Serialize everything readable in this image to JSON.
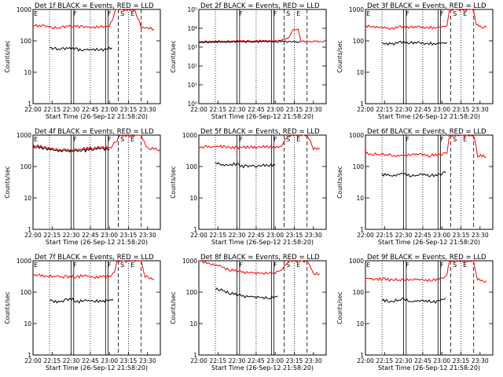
{
  "chart_data": {
    "type": "line",
    "x_tick_labels": [
      "22:00",
      "22:15",
      "22:30",
      "22:45",
      "23:00",
      "23:15",
      "23:30"
    ],
    "x_range": [
      "22:00",
      "23:40"
    ],
    "panels": [
      {
        "title": "Det 1f BLACK = Events, RED = LLD",
        "xlabel": "Start Time (26-Sep-12 21:58:20)",
        "ylabel": "Counts/sec",
        "scale": "log",
        "ylim": [
          1,
          1000
        ],
        "y_tick_labels": [
          "1",
          "10",
          "100",
          "1000"
        ],
        "markers": [
          "E",
          "F",
          "F",
          "S",
          "E"
        ],
        "series": [
          {
            "color": "#ff0000",
            "x": [
              "22:00",
              "22:10",
              "22:20",
              "22:30",
              "22:40",
              "22:50",
              "23:00",
              "23:03",
              "23:05",
              "23:08",
              "23:15",
              "23:20",
              "23:25",
              "23:35"
            ],
            "values": [
              320,
              280,
              260,
              300,
              280,
              270,
              290,
              500,
              1000,
              1000,
              1000,
              1000,
              260,
              240
            ]
          },
          {
            "color": "#000000",
            "x": [
              "22:13",
              "22:20",
              "22:30",
              "22:38",
              "22:45",
              "22:55",
              "23:02"
            ],
            "values": [
              60,
              55,
              58,
              52,
              55,
              50,
              60
            ]
          }
        ]
      },
      {
        "title": "Det 2f BLACK = Events, RED = LLD",
        "xlabel": "Start Time (26-Sep-12 21:58:20)",
        "ylabel": "Counts/sec",
        "scale": "log",
        "ylim": [
          1,
          100000
        ],
        "y_tick_labels": [
          "10⁰",
          "10¹",
          "10²",
          "10³",
          "10⁴",
          "10⁵"
        ],
        "markers": [
          "F",
          "F",
          "S",
          "E"
        ],
        "series": [
          {
            "color": "#ff0000",
            "x": [
              "22:00",
              "22:30",
              "23:00",
              "23:05",
              "23:10",
              "23:14",
              "23:18",
              "23:20",
              "23:40"
            ],
            "values": [
              2000,
              2100,
              2200,
              2300,
              3000,
              8000,
              9000,
              2000,
              2000
            ]
          },
          {
            "color": "#000000",
            "x": [
              "22:00",
              "22:30",
              "23:00",
              "23:20"
            ],
            "values": [
              1800,
              1900,
              2000,
              1900
            ]
          }
        ]
      },
      {
        "title": "Det 3f BLACK = Events, RED = LLD",
        "xlabel": "Start Time (26-Sep-12 21:58:20)",
        "ylabel": "Counts/sec",
        "scale": "log",
        "ylim": [
          1,
          1000
        ],
        "y_tick_labels": [
          "1",
          "10",
          "100",
          "1000"
        ],
        "markers": [
          "E",
          "F",
          "F",
          "S",
          "E"
        ],
        "series": [
          {
            "color": "#ff0000",
            "x": [
              "22:00",
              "22:10",
              "22:20",
              "22:30",
              "22:40",
              "22:50",
              "23:00",
              "23:04",
              "23:06",
              "23:25",
              "23:27",
              "23:35"
            ],
            "values": [
              300,
              270,
              250,
              280,
              270,
              260,
              280,
              320,
              1000,
              1000,
              300,
              270
            ]
          },
          {
            "color": "#000000",
            "x": [
              "22:13",
              "22:20",
              "22:30",
              "22:40",
              "22:50",
              "23:00",
              "23:04"
            ],
            "values": [
              85,
              80,
              90,
              85,
              80,
              85,
              90
            ]
          }
        ]
      },
      {
        "title": "Det 4f BLACK = Events, RED = LLD",
        "xlabel": "Start Time (26-Sep-12 21:58:20)",
        "ylabel": "Counts/sec",
        "scale": "log",
        "ylim": [
          1,
          1000
        ],
        "y_tick_labels": [
          "1",
          "10",
          "100",
          "1000"
        ],
        "markers": [
          "E",
          "F",
          "F",
          "S",
          "E"
        ],
        "series": [
          {
            "color": "#ff0000",
            "x": [
              "22:00",
              "22:10",
              "22:20",
              "22:30",
              "22:40",
              "22:50",
              "23:00",
              "23:05",
              "23:08",
              "23:25",
              "23:30",
              "23:40"
            ],
            "values": [
              480,
              420,
              350,
              340,
              360,
              420,
              380,
              600,
              1000,
              1000,
              380,
              350
            ]
          },
          {
            "color": "#000000",
            "x": [
              "22:00",
              "22:10",
              "22:20",
              "22:30",
              "22:40",
              "22:50",
              "23:00"
            ],
            "values": [
              430,
              380,
              320,
              310,
              320,
              380,
              340
            ]
          }
        ]
      },
      {
        "title": "Det 5f BLACK = Events, RED = LLD",
        "xlabel": "Start Time (26-Sep-12 21:58:20)",
        "ylabel": "Counts/sec",
        "scale": "log",
        "ylim": [
          1,
          1000
        ],
        "y_tick_labels": [
          "1",
          "10",
          "100",
          "1000"
        ],
        "markers": [
          "F",
          "F",
          "S",
          "E"
        ],
        "series": [
          {
            "color": "#ff0000",
            "x": [
              "22:00",
              "22:15",
              "22:30",
              "22:45",
              "23:00",
              "23:05",
              "23:10",
              "23:25",
              "23:30",
              "23:35"
            ],
            "values": [
              420,
              430,
              400,
              420,
              420,
              440,
              1000,
              1000,
              380,
              360
            ]
          },
          {
            "color": "#000000",
            "x": [
              "22:13",
              "22:20",
              "22:30",
              "22:35",
              "22:45",
              "23:00"
            ],
            "values": [
              130,
              110,
              120,
              100,
              105,
              110
            ]
          }
        ]
      },
      {
        "title": "Det 6f BLACK = Events, RED = LLD",
        "xlabel": "Start Time (26-Sep-12 21:58:20)",
        "ylabel": "Counts/sec",
        "scale": "log",
        "ylim": [
          1,
          1000
        ],
        "y_tick_labels": [
          "1",
          "10",
          "100",
          "1000"
        ],
        "markers": [
          "F",
          "F",
          "S",
          "E"
        ],
        "series": [
          {
            "color": "#ff0000",
            "x": [
              "22:00",
              "22:10",
              "22:20",
              "22:30",
              "22:40",
              "22:50",
              "23:00",
              "23:04",
              "23:06",
              "23:25",
              "23:28",
              "23:35"
            ],
            "values": [
              260,
              240,
              230,
              220,
              250,
              220,
              240,
              280,
              1000,
              1000,
              230,
              200
            ]
          },
          {
            "color": "#000000",
            "x": [
              "22:13",
              "22:20",
              "22:30",
              "22:35",
              "22:45",
              "22:55",
              "23:03"
            ],
            "values": [
              55,
              52,
              60,
              50,
              55,
              50,
              65
            ]
          }
        ]
      },
      {
        "title": "Det 7f BLACK = Events, RED = LLD",
        "xlabel": "Start Time (26-Sep-12 21:58:20)",
        "ylabel": "Counts/sec",
        "scale": "log",
        "ylim": [
          1,
          1000
        ],
        "y_tick_labels": [
          "1",
          "10",
          "100",
          "1000"
        ],
        "markers": [
          "E",
          "F",
          "F",
          "S",
          "E"
        ],
        "series": [
          {
            "color": "#ff0000",
            "x": [
              "22:00",
              "22:10",
              "22:20",
              "22:30",
              "22:40",
              "22:50",
              "23:00",
              "23:04",
              "23:06",
              "23:25",
              "23:28",
              "23:35"
            ],
            "values": [
              350,
              330,
              320,
              300,
              330,
              300,
              320,
              400,
              1000,
              1000,
              320,
              260
            ]
          },
          {
            "color": "#000000",
            "x": [
              "22:13",
              "22:20",
              "22:30",
              "22:35",
              "22:45",
              "22:55",
              "23:03"
            ],
            "values": [
              55,
              50,
              60,
              50,
              55,
              50,
              60
            ]
          }
        ]
      },
      {
        "title": "Det 8f BLACK = Events, RED = LLD",
        "xlabel": "Start Time (26-Sep-12 21:58:20)",
        "ylabel": "Counts/sec",
        "scale": "log",
        "ylim": [
          1,
          1000
        ],
        "y_tick_labels": [
          "1",
          "10",
          "100",
          "1000"
        ],
        "markers": [
          "F",
          "F",
          "S",
          "E"
        ],
        "series": [
          {
            "color": "#ff0000",
            "x": [
              "22:00",
              "22:10",
              "22:20",
              "22:30",
              "22:40",
              "22:50",
              "23:00",
              "23:05",
              "23:10",
              "23:25",
              "23:30",
              "23:35"
            ],
            "values": [
              1000,
              800,
              600,
              450,
              420,
              400,
              420,
              500,
              1000,
              1000,
              400,
              380
            ]
          },
          {
            "color": "#000000",
            "x": [
              "22:13",
              "22:20",
              "22:30",
              "22:35",
              "22:45",
              "22:55",
              "23:02"
            ],
            "values": [
              130,
              110,
              80,
              75,
              70,
              65,
              75
            ]
          }
        ]
      },
      {
        "title": "Det 9f BLACK = Events, RED = LLD",
        "xlabel": "Start Time (26-Sep-12 21:58:20)",
        "ylabel": "Counts/sec",
        "scale": "log",
        "ylim": [
          1,
          1000
        ],
        "y_tick_labels": [
          "1",
          "10",
          "100",
          "1000"
        ],
        "markers": [
          "E",
          "F",
          "F",
          "S",
          "E"
        ],
        "series": [
          {
            "color": "#ff0000",
            "x": [
              "22:00",
              "22:10",
              "22:20",
              "22:30",
              "22:40",
              "22:50",
              "23:00",
              "23:04",
              "23:06",
              "23:25",
              "23:28",
              "23:35"
            ],
            "values": [
              280,
              260,
              250,
              240,
              260,
              240,
              270,
              350,
              1000,
              1000,
              250,
              230
            ]
          },
          {
            "color": "#000000",
            "x": [
              "22:13",
              "22:20",
              "22:30",
              "22:35",
              "22:45",
              "22:55",
              "23:03"
            ],
            "values": [
              55,
              50,
              60,
              50,
              55,
              50,
              65
            ]
          }
        ]
      }
    ]
  }
}
